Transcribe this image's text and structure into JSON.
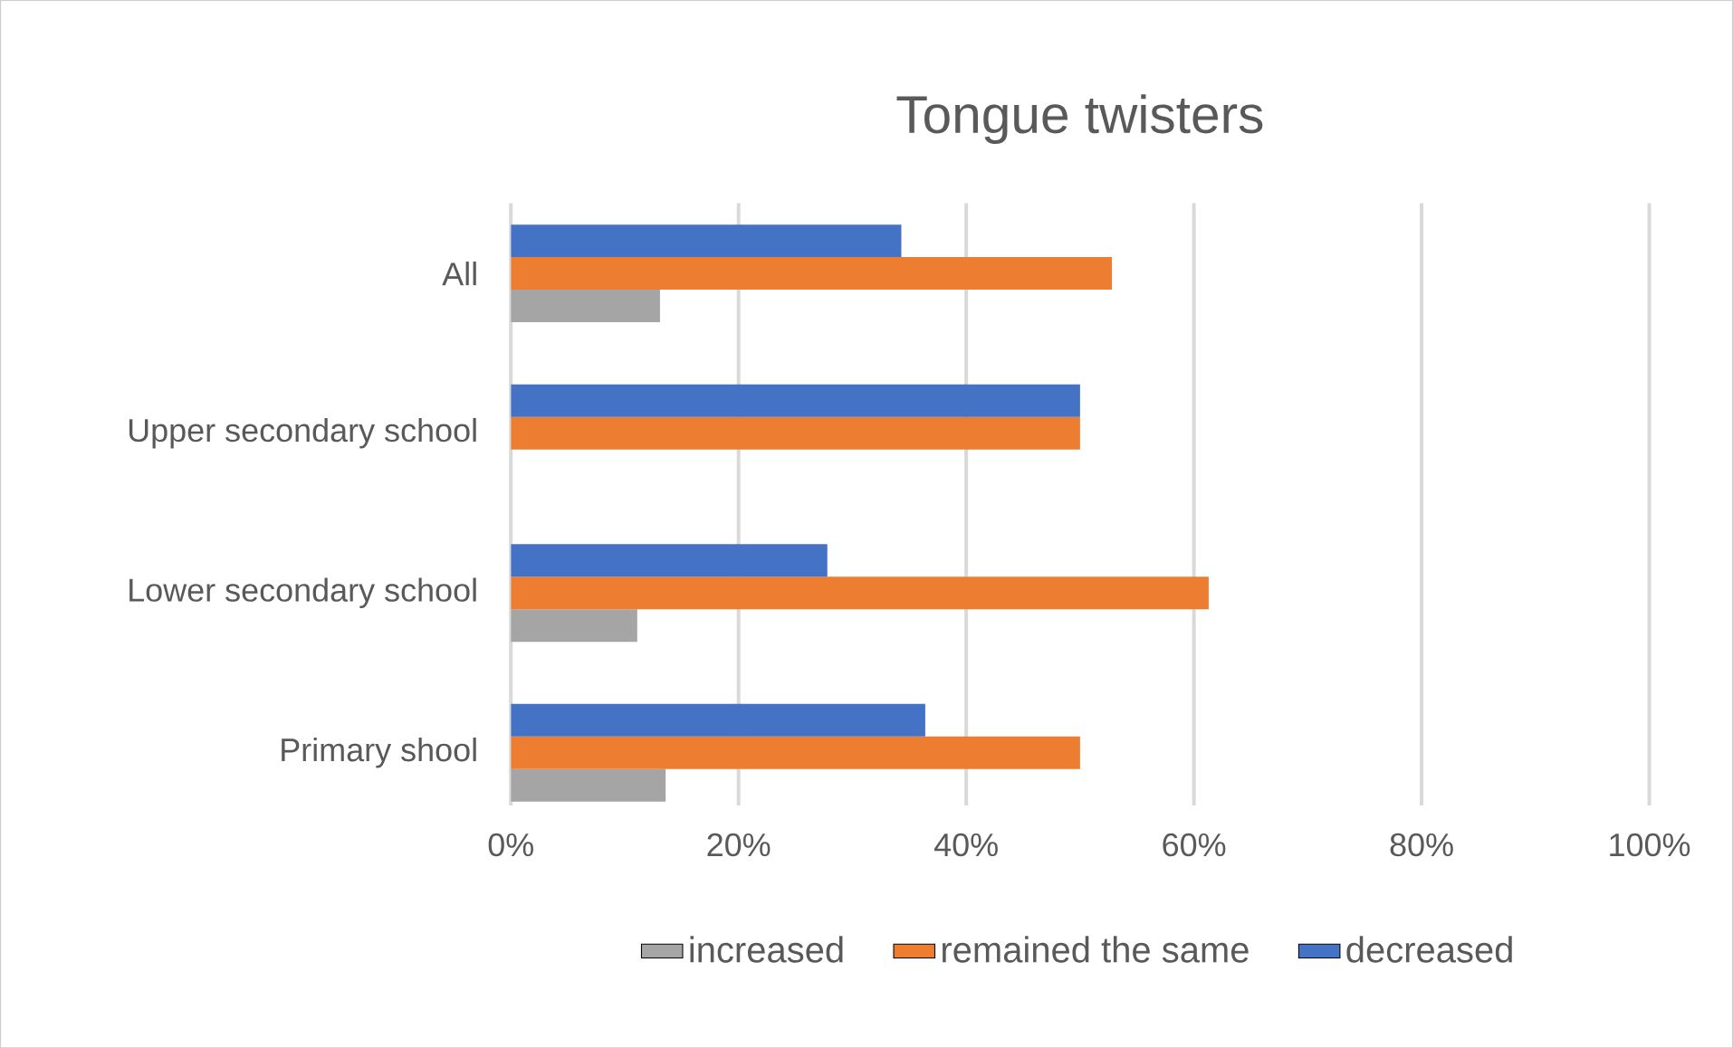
{
  "chart_data": {
    "type": "bar",
    "orientation": "horizontal",
    "title": "Tongue twisters",
    "categories": [
      "All",
      "Upper secondary school",
      "Lower secondary school",
      "Primary shool"
    ],
    "series": [
      {
        "name": "increased",
        "color": "#a5a5a5",
        "values": [
          13.1,
          0,
          11.1,
          13.6
        ]
      },
      {
        "name": "remained the same",
        "color": "#ed7d31",
        "values": [
          52.8,
          50,
          61.3,
          50
        ]
      },
      {
        "name": "decreased",
        "color": "#4472c4",
        "values": [
          34.3,
          50,
          27.8,
          36.4
        ]
      }
    ],
    "xlim": [
      0,
      100
    ],
    "xticks": [
      {
        "value": 0,
        "label": "0%"
      },
      {
        "value": 20,
        "label": "20%"
      },
      {
        "value": 40,
        "label": "40%"
      },
      {
        "value": 60,
        "label": "60%"
      },
      {
        "value": 80,
        "label": "80%"
      },
      {
        "value": 100,
        "label": "100%"
      }
    ],
    "grid": "x",
    "legend": "bottom"
  }
}
